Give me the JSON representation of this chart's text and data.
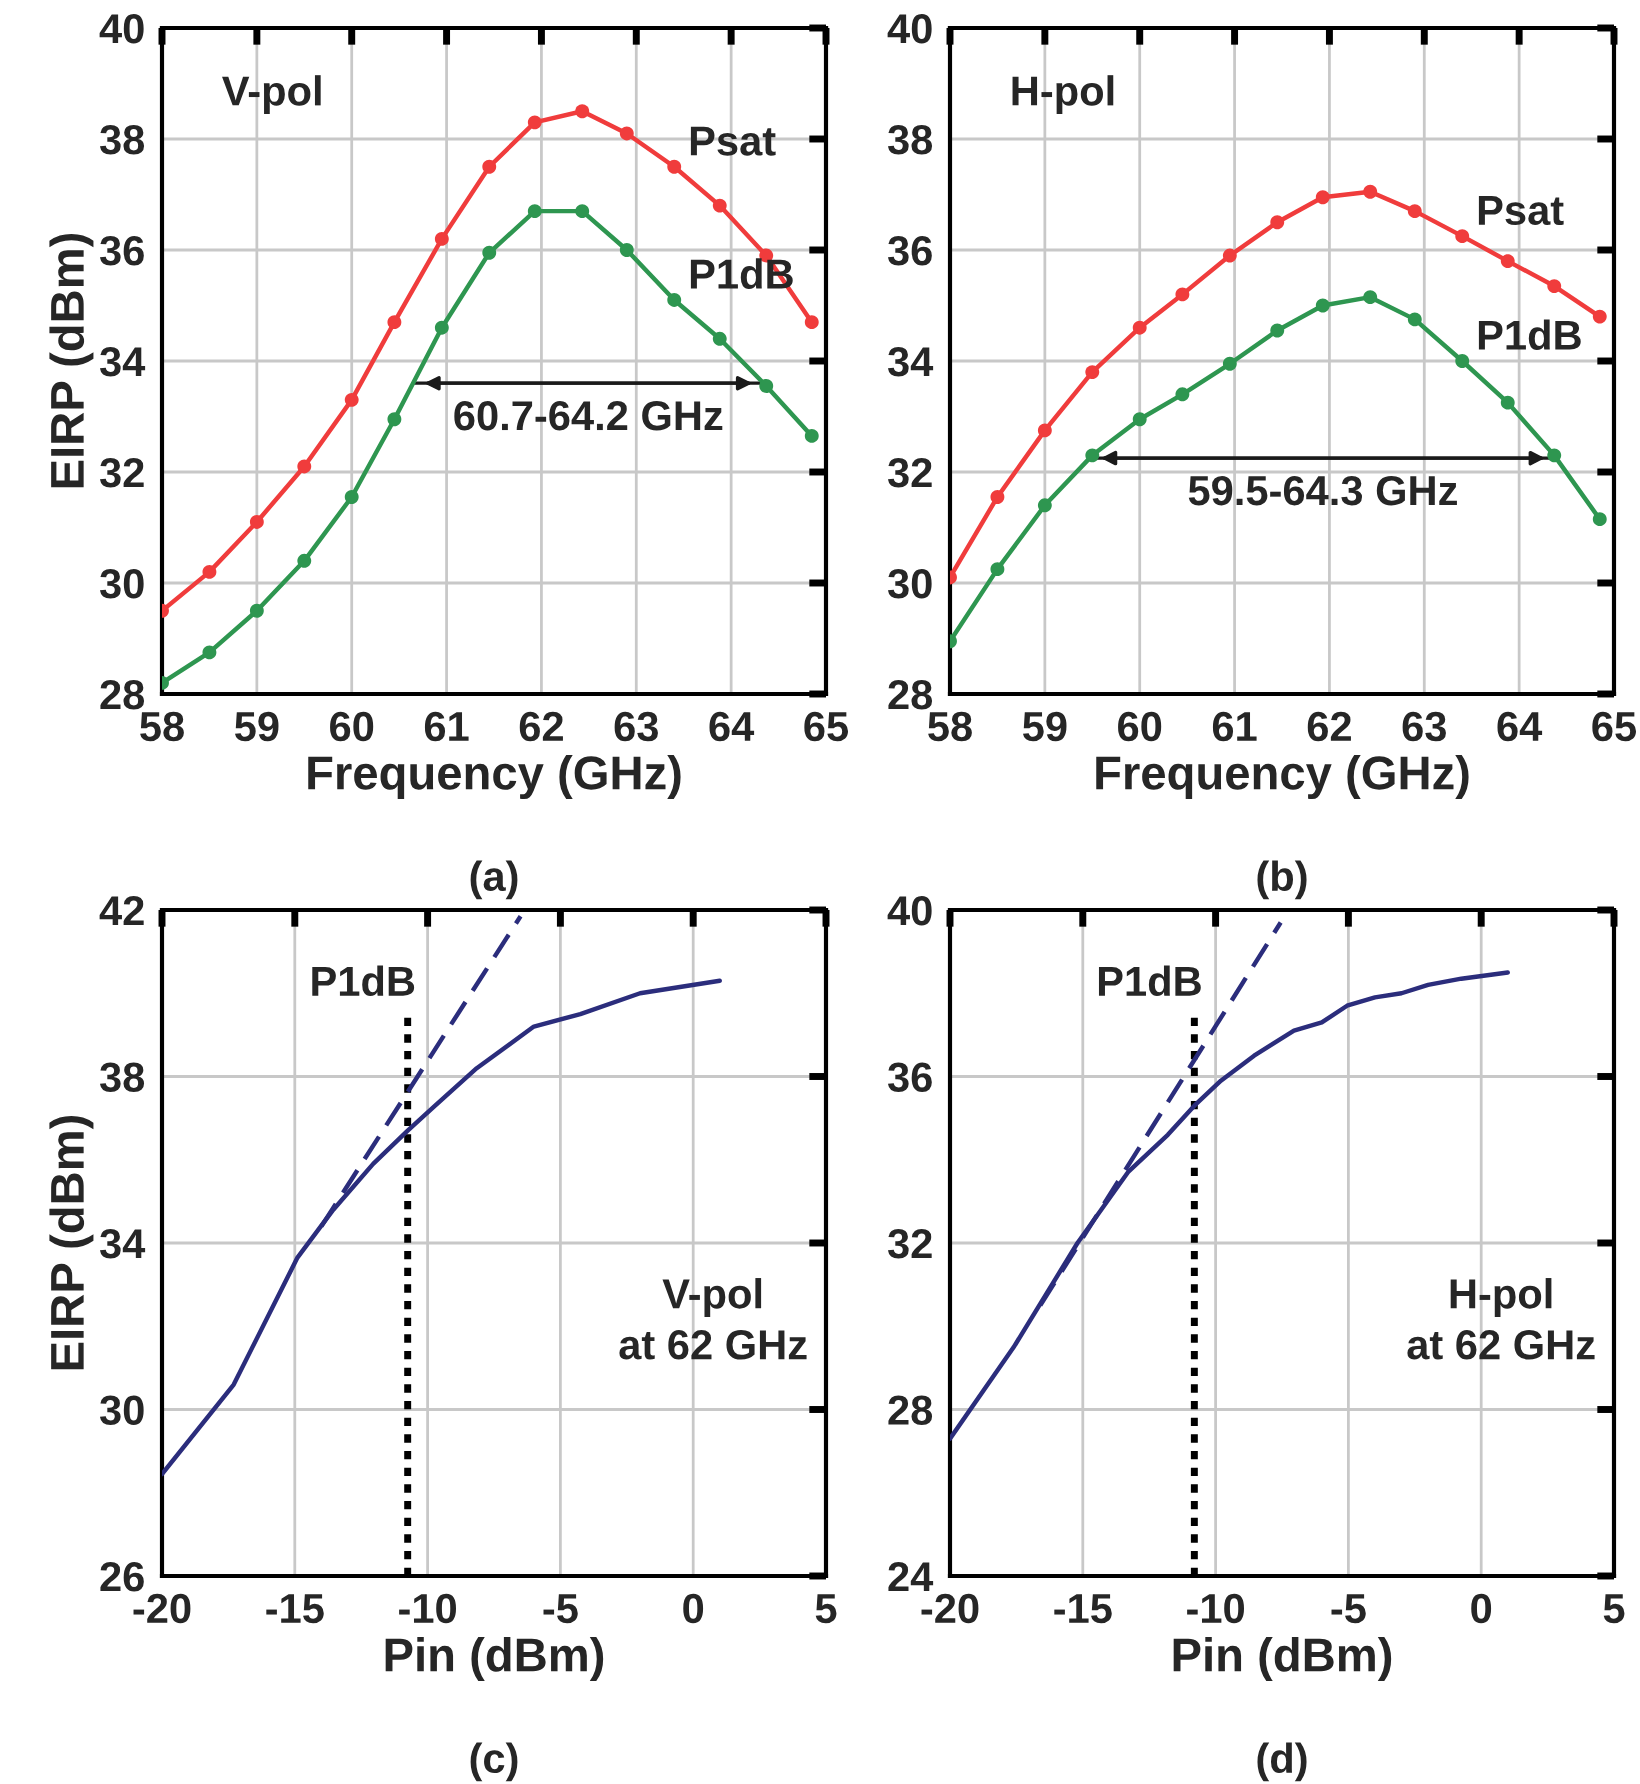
{
  "chart_data": [
    {
      "type": "line",
      "title": "(a)",
      "xlabel": "Frequency (GHz)",
      "ylabel": "EIRP (dBm)",
      "xlim": [
        58,
        65
      ],
      "xticks": [
        58,
        59,
        60,
        61,
        62,
        63,
        64,
        65
      ],
      "ylim": [
        28,
        40
      ],
      "yticks": [
        28,
        30,
        32,
        34,
        36,
        38,
        40
      ],
      "grid": true,
      "marker": "circle",
      "x": [
        58,
        58.5,
        59,
        59.5,
        60,
        60.45,
        60.95,
        61.45,
        61.93,
        62.43,
        62.9,
        63.4,
        63.88,
        64.37,
        64.85
      ],
      "series": [
        {
          "name": "Psat",
          "color": "#f03c3c",
          "values": [
            29.5,
            30.2,
            31.1,
            32.1,
            33.3,
            34.7,
            36.2,
            37.5,
            38.3,
            38.5,
            38.1,
            37.5,
            36.8,
            35.9,
            34.7
          ]
        },
        {
          "name": "P1dB",
          "color": "#2e9650",
          "values": [
            28.2,
            28.75,
            29.5,
            30.4,
            31.55,
            32.95,
            34.6,
            35.95,
            36.7,
            36.7,
            36.0,
            35.1,
            34.4,
            33.55,
            32.65
          ]
        }
      ],
      "ref_lines": [
        {
          "axis": "y",
          "value": 33.6,
          "label": "60.7-64.2 GHz",
          "color": "#1a1a1a"
        }
      ],
      "annotations": [
        "V-pol"
      ]
    },
    {
      "type": "line",
      "title": "(b)",
      "xlabel": "Frequency (GHz)",
      "xlim": [
        58,
        65
      ],
      "xticks": [
        58,
        59,
        60,
        61,
        62,
        63,
        64,
        65
      ],
      "ylim": [
        28,
        40
      ],
      "yticks": [
        28,
        30,
        32,
        34,
        36,
        38,
        40
      ],
      "grid": true,
      "marker": "circle",
      "x": [
        58,
        58.5,
        59,
        59.5,
        60,
        60.45,
        60.95,
        61.45,
        61.93,
        62.43,
        62.9,
        63.4,
        63.88,
        64.37,
        64.85
      ],
      "series": [
        {
          "name": "Psat",
          "color": "#f03c3c",
          "values": [
            30.1,
            31.55,
            32.75,
            33.8,
            34.6,
            35.2,
            35.9,
            36.5,
            36.95,
            37.05,
            36.7,
            36.25,
            35.8,
            35.35,
            34.8
          ]
        },
        {
          "name": "P1dB",
          "color": "#2e9650",
          "values": [
            28.95,
            30.25,
            31.4,
            32.3,
            32.95,
            33.4,
            33.95,
            34.55,
            35.0,
            35.15,
            34.75,
            34.0,
            33.25,
            32.3,
            31.15
          ]
        }
      ],
      "ref_lines": [
        {
          "axis": "y",
          "value": 32.25,
          "label": "59.5-64.3 GHz",
          "color": "#1a1a1a"
        }
      ],
      "annotations": [
        "H-pol"
      ]
    },
    {
      "type": "line",
      "title": "(c)",
      "xlabel": "Pin (dBm)",
      "ylabel": "EIRP (dBm)",
      "xlim": [
        -20,
        5
      ],
      "xticks": [
        -20,
        -15,
        -10,
        -5,
        0,
        5
      ],
      "ylim": [
        26,
        42
      ],
      "yticks": [
        26,
        30,
        34,
        38,
        42
      ],
      "grid": true,
      "series": [
        {
          "color": "#2b2d7c",
          "line_style": "solid",
          "x": [
            -20,
            -17.3,
            -14.9,
            -13.55,
            -12.05,
            -10.75,
            -9.8,
            -8.15,
            -6.0,
            -4.25,
            -2.0,
            1.0
          ],
          "values": [
            28.45,
            30.6,
            33.65,
            34.8,
            35.9,
            36.7,
            37.25,
            38.2,
            39.2,
            39.5,
            40.0,
            40.3
          ]
        },
        {
          "color": "#2b2d7c",
          "line_style": "dashed",
          "x": [
            -14.0,
            -6.5
          ],
          "values": [
            34.4,
            41.85
          ]
        }
      ],
      "ref_lines": [
        {
          "axis": "x",
          "value": -10.75,
          "label": "P1dB",
          "line_style": "dotted",
          "color": "#000000"
        }
      ],
      "annotations": [
        "V-pol\nat 62 GHz"
      ]
    },
    {
      "type": "line",
      "title": "(d)",
      "xlabel": "Pin (dBm)",
      "xlim": [
        -20,
        5
      ],
      "xticks": [
        -20,
        -15,
        -10,
        -5,
        0,
        5
      ],
      "ylim": [
        24,
        40
      ],
      "yticks": [
        24,
        28,
        32,
        36,
        40
      ],
      "grid": true,
      "series": [
        {
          "color": "#2b2d7c",
          "line_style": "solid",
          "x": [
            -20,
            -17.6,
            -15.2,
            -13.3,
            -11.8,
            -10.8,
            -9.8,
            -8.55,
            -7.05,
            -6.0,
            -5.05,
            -4.0,
            -3.0,
            -2.0,
            -0.75,
            1.0
          ],
          "values": [
            27.3,
            29.5,
            32.0,
            33.7,
            34.6,
            35.3,
            35.9,
            36.5,
            37.1,
            37.3,
            37.7,
            37.9,
            38.0,
            38.2,
            38.35,
            38.5
          ]
        },
        {
          "color": "#2b2d7c",
          "line_style": "dashed",
          "x": [
            -16.6,
            -7.55
          ],
          "values": [
            30.5,
            39.7
          ]
        }
      ],
      "ref_lines": [
        {
          "axis": "x",
          "value": -10.8,
          "label": "P1dB",
          "line_style": "dotted",
          "color": "#000000"
        }
      ],
      "annotations": [
        "H-pol\nat 62 GHz"
      ]
    }
  ]
}
